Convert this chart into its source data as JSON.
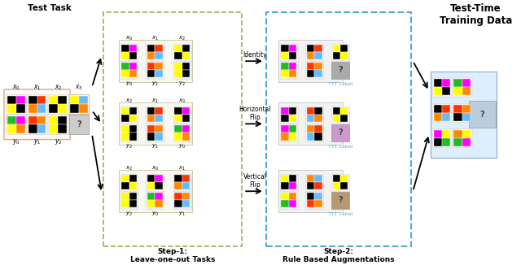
{
  "title": "Test-Time\nTraining Data",
  "step1_label": "Step-1:\nLeave-one-out Tasks",
  "step2_label": "Step-2:\nRule Based Augmentations",
  "identity_label": "Identity",
  "hflip_label": "Horizontal\nFlip",
  "vflip_label": "Vertical\nFlip",
  "ttt_label": "TTT Label",
  "test_task_label": "Test Task",
  "bg_color": "#ffffff",
  "BK": "#000000",
  "MG": "#ff00ff",
  "YL": "#ffff00",
  "GN": "#22bb22",
  "RD": "#ff3300",
  "OR": "#ff8800",
  "CY": "#66bbff",
  "dashed_box1_color": "#aaa855",
  "dashed_box2_color": "#55aacc",
  "panel_bg_light": "#f5f5ee",
  "panel_border": "#ccccaa",
  "grid_panel_bg": "#f0eeee",
  "held_out_bg": "#e8eeff",
  "q_bg_gray": "#aaaaaa",
  "q_bg_tan": "#c4a882",
  "out_panel_bg": "#ddeeff"
}
